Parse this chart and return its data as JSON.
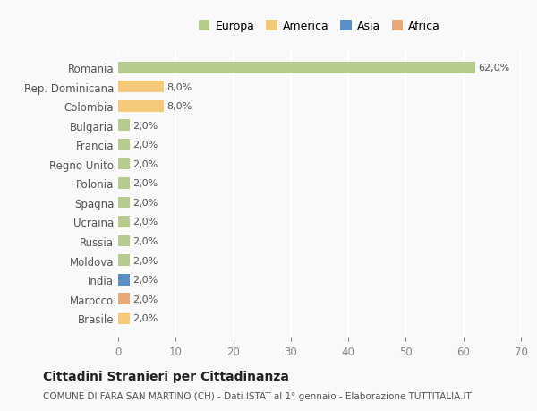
{
  "countries": [
    "Romania",
    "Rep. Dominicana",
    "Colombia",
    "Bulgaria",
    "Francia",
    "Regno Unito",
    "Polonia",
    "Spagna",
    "Ucraina",
    "Russia",
    "Moldova",
    "India",
    "Marocco",
    "Brasile"
  ],
  "values": [
    62.0,
    8.0,
    8.0,
    2.0,
    2.0,
    2.0,
    2.0,
    2.0,
    2.0,
    2.0,
    2.0,
    2.0,
    2.0,
    2.0
  ],
  "continents": [
    "Europa",
    "America",
    "America",
    "Europa",
    "Europa",
    "Europa",
    "Europa",
    "Europa",
    "Europa",
    "Europa",
    "Europa",
    "Asia",
    "Africa",
    "America"
  ],
  "colors": {
    "Europa": "#b5cc8e",
    "America": "#f5c97a",
    "Asia": "#5b8ec4",
    "Africa": "#e8a87c"
  },
  "legend_order": [
    "Europa",
    "America",
    "Asia",
    "Africa"
  ],
  "title": "Cittadini Stranieri per Cittadinanza",
  "subtitle": "COMUNE DI FARA SAN MARTINO (CH) - Dati ISTAT al 1° gennaio - Elaborazione TUTTITALIA.IT",
  "xlim": [
    0,
    70
  ],
  "xticks": [
    0,
    10,
    20,
    30,
    40,
    50,
    60,
    70
  ],
  "background_color": "#f9f9f9",
  "grid_color": "#ffffff",
  "bar_height": 0.6
}
